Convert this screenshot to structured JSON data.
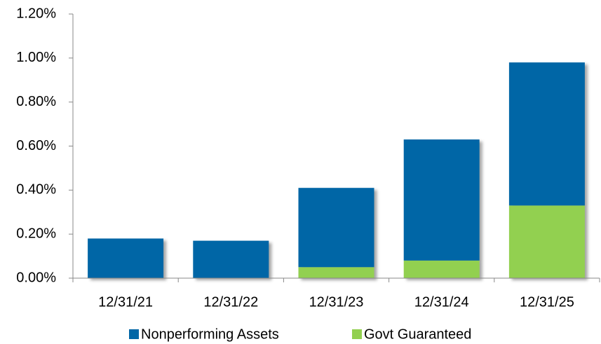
{
  "chart_data": {
    "type": "stacked_bar",
    "categories": [
      "12/31/21",
      "12/31/22",
      "12/31/23",
      "12/31/24",
      "12/31/25"
    ],
    "series": [
      {
        "name": "Govt Guaranteed",
        "color": "#92d050",
        "values": [
          0,
          0,
          0.05,
          0.08,
          0.33
        ]
      },
      {
        "name": "Nonperforming Assets",
        "color": "#0066a6",
        "values": [
          0.18,
          0.17,
          0.36,
          0.55,
          0.65
        ]
      }
    ],
    "legend_order": [
      1,
      0
    ],
    "ylim": [
      0,
      1.2
    ],
    "yticks": [
      {
        "value": 0,
        "label": "0.00%"
      },
      {
        "value": 0.2,
        "label": "0.20%"
      },
      {
        "value": 0.4,
        "label": "0.40%"
      },
      {
        "value": 0.6,
        "label": "0.60%"
      },
      {
        "value": 0.8,
        "label": "0.80%"
      },
      {
        "value": 1.0,
        "label": "1.00%"
      },
      {
        "value": 1.2,
        "label": "1.20%"
      }
    ],
    "grid": false,
    "legend": "bottom"
  }
}
